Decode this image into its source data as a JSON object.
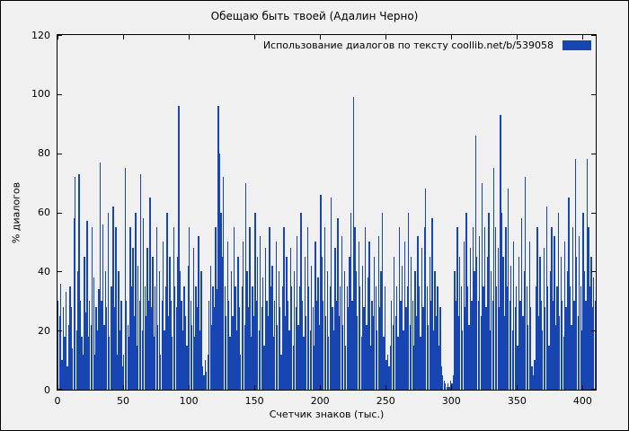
{
  "figure": {
    "title": "Обещаю быть твоей   (Адалин Черно)"
  },
  "chart_data": {
    "type": "bar",
    "title": "Обещаю быть твоей   (Адалин Черно)",
    "legend": "Использование диалогов по тексту  coollib.net/b/539058",
    "legend_position": "top-right",
    "xlabel": "Счетчик знаков (тыс.)",
    "ylabel": "% диалогов",
    "xlim": [
      0,
      410
    ],
    "ylim": [
      0,
      120
    ],
    "xticks": [
      0,
      50,
      100,
      150,
      200,
      250,
      300,
      350,
      400
    ],
    "yticks": [
      0,
      20,
      40,
      60,
      80,
      100,
      120
    ],
    "grid": false,
    "bar_color": "#1745b2",
    "values": [
      30,
      25,
      36,
      10,
      28,
      18,
      33,
      8,
      22,
      35,
      28,
      14,
      58,
      72,
      20,
      40,
      73,
      30,
      18,
      12,
      45,
      26,
      57,
      18,
      30,
      22,
      55,
      38,
      12,
      28,
      20,
      34,
      77,
      30,
      56,
      22,
      40,
      28,
      60,
      18,
      35,
      35,
      62,
      28,
      55,
      12,
      40,
      20,
      30,
      8,
      12,
      75,
      30,
      22,
      18,
      55,
      35,
      48,
      25,
      60,
      15,
      42,
      30,
      73,
      20,
      58,
      35,
      25,
      48,
      30,
      65,
      28,
      45,
      18,
      35,
      55,
      22,
      40,
      12,
      30,
      50,
      20,
      35,
      60,
      25,
      45,
      30,
      18,
      55,
      35,
      28,
      45,
      96,
      40,
      30,
      20,
      35,
      25,
      15,
      42,
      55,
      30,
      22,
      48,
      18,
      35,
      28,
      52,
      20,
      40,
      8,
      5,
      10,
      6,
      12,
      30,
      42,
      22,
      35,
      28,
      55,
      34,
      96,
      80,
      60,
      45,
      72,
      35,
      25,
      50,
      30,
      18,
      40,
      25,
      55,
      35,
      20,
      45,
      28,
      12,
      35,
      50,
      22,
      70,
      40,
      28,
      55,
      18,
      35,
      25,
      60,
      30,
      45,
      20,
      52,
      28,
      38,
      15,
      48,
      30,
      25,
      55,
      35,
      42,
      18,
      30,
      50,
      22,
      40,
      28,
      12,
      35,
      55,
      25,
      45,
      30,
      20,
      48,
      35,
      15,
      40,
      28,
      52,
      22,
      35,
      60,
      30,
      18,
      45,
      25,
      55,
      35,
      20,
      42,
      28,
      15,
      50,
      30,
      38,
      22,
      66,
      45,
      30,
      55,
      25,
      40,
      18,
      35,
      65,
      28,
      20,
      48,
      30,
      58,
      25,
      35,
      52,
      22,
      40,
      15,
      35,
      28,
      45,
      60,
      30,
      99,
      55,
      40,
      25,
      50,
      35,
      18,
      42,
      28,
      55,
      22,
      38,
      50,
      15,
      30,
      25,
      45,
      35,
      20,
      52,
      28,
      40,
      60,
      18,
      35,
      10,
      12,
      8,
      15,
      30,
      22,
      45,
      25,
      35,
      18,
      55,
      30,
      42,
      20,
      50,
      28,
      35,
      60,
      22,
      45,
      30,
      15,
      40,
      25,
      52,
      35,
      18,
      48,
      28,
      55,
      68,
      35,
      22,
      45,
      30,
      58,
      20,
      40,
      25,
      35,
      15,
      28,
      8,
      5,
      3,
      2,
      1,
      2,
      1,
      3,
      2,
      5,
      40,
      30,
      55,
      25,
      45,
      35,
      20,
      50,
      28,
      60,
      35,
      22,
      48,
      30,
      55,
      40,
      86,
      45,
      30,
      52,
      25,
      70,
      35,
      55,
      28,
      45,
      60,
      20,
      40,
      30,
      75,
      55,
      35,
      48,
      28,
      93,
      60,
      45,
      25,
      55,
      35,
      68,
      30,
      42,
      20,
      50,
      28,
      35,
      15,
      45,
      30,
      58,
      25,
      40,
      72,
      35,
      22,
      50,
      28,
      8,
      5,
      10,
      35,
      55,
      25,
      45,
      30,
      20,
      48,
      28,
      62,
      35,
      15,
      40,
      55,
      30,
      52,
      22,
      35,
      60,
      25,
      45,
      30,
      18,
      50,
      28,
      40,
      65,
      35,
      22,
      55,
      30,
      78,
      45,
      25,
      52,
      35,
      20,
      60,
      40,
      30,
      78,
      55,
      35,
      45,
      28,
      38,
      30
    ]
  }
}
